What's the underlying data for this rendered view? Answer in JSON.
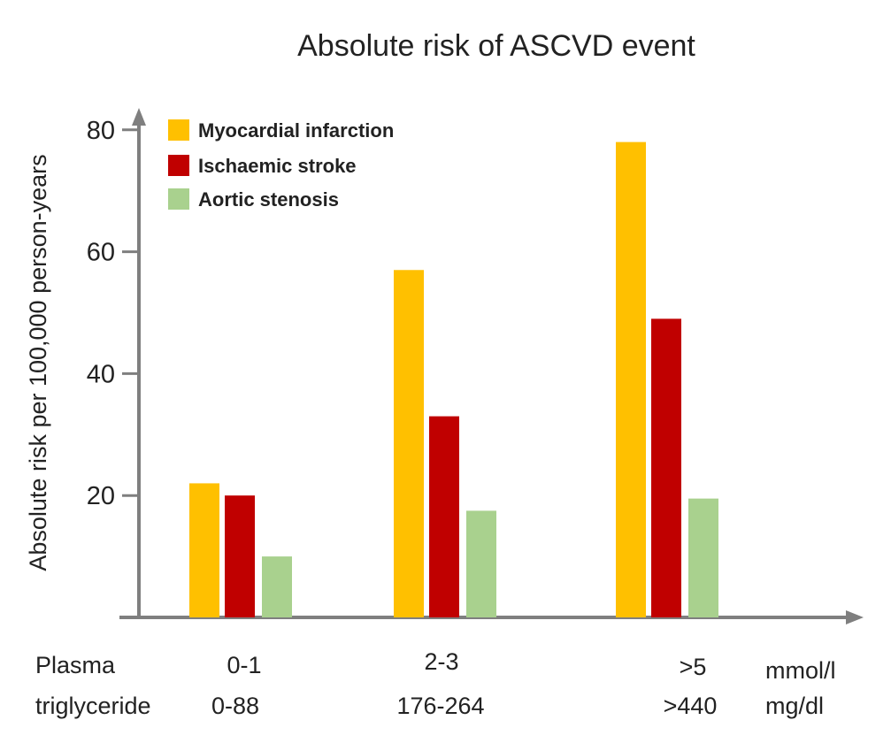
{
  "chart_data": {
    "type": "bar",
    "title": "Absolute risk of ASCVD event",
    "ylabel": "Absolute risk per 100,000 person-years",
    "ylim": [
      0,
      85
    ],
    "yticks": [
      "20",
      "40",
      "60",
      "80"
    ],
    "ytick_values": [
      20,
      40,
      60,
      80
    ],
    "categories": [
      "0-1",
      "2-3",
      ">5"
    ],
    "categories_secondary": [
      "0-88",
      "176-264",
      ">440"
    ],
    "x_row_labels": [
      "Plasma",
      "triglyceride"
    ],
    "x_units": [
      "mmol/l",
      "mg/dl"
    ],
    "series": [
      {
        "name": "Myocardial  infarction",
        "color": "#FFC000",
        "values": [
          22,
          57,
          78
        ]
      },
      {
        "name": "Ischaemic  stroke",
        "color": "#C00000",
        "values": [
          20,
          33,
          49
        ]
      },
      {
        "name": "Aortic stenosis",
        "color": "#A9D18E",
        "values": [
          10,
          17.5,
          19.5
        ]
      }
    ],
    "legend_position": "top-left",
    "grid": false
  }
}
